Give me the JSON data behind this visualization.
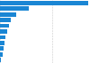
{
  "values": [
    16820,
    5540,
    3160,
    2100,
    1700,
    1350,
    1100,
    900,
    700,
    500,
    150
  ],
  "bar_color": "#1a86d4",
  "background_color": "#ffffff",
  "grid_color": "#c8c8c8",
  "figsize": [
    1.0,
    0.71
  ],
  "dpi": 100,
  "bar_height": 0.75,
  "grid_linestyle": "--",
  "grid_linewidth": 0.4
}
